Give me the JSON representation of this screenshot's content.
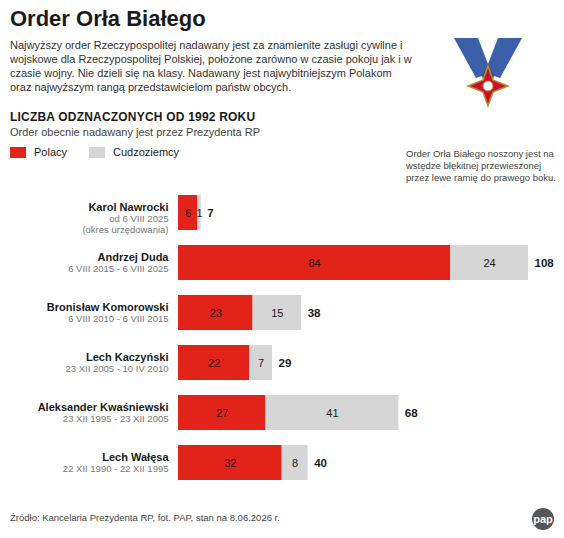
{
  "chart_data": {
    "type": "bar",
    "orientation": "horizontal",
    "stacked": true,
    "data_labels": true,
    "tick_labels": false,
    "legend": "top-left",
    "title": "Order Orła Białego",
    "description": "Najwyższy order Rzeczypospolitej nadawany jest za znamienite zasługi cywilne i wojskowe dla Rzeczypospolitej Polskiej, położone zarówno w czasie pokoju jak i w czasie wojny. Nie dzieli się na klasy. Nadawany jest najwybitniejszym Polakom oraz najwyższym rangą przedstawicielom państw obcych.",
    "subtitle": "LICZBA ODZNACZONYCH OD 1992 ROKU",
    "subtitle2": "Order obecnie nadawany jest przez Prezydenta RP",
    "note": "Order Orła Białego noszony jest na wstędze błękitnej przewieszonej przez lewe ramię do prawego boku.",
    "source": "Źródło: Kancelaria Prezydenta RP, fot. PAP, stan na 8.06.2026 r.",
    "logo_text": "pap",
    "categories": [
      "Karol Nawrocki",
      "Andrzej Duda",
      "Bronisław Komorowski",
      "Lech Kaczyński",
      "Aleksander Kwaśniewski",
      "Lech Wałęsa"
    ],
    "terms": [
      [
        "od 6 VIII 2025",
        "(okres urzędowania)"
      ],
      [
        "6 VIII 2015 - 6 VIII 2025"
      ],
      [
        "6 VIII 2010 - 6 VIII 2015"
      ],
      [
        "23 XII 2005 - 10 IV 2010"
      ],
      [
        "23 XII 1995 - 23 XII 2005"
      ],
      [
        "22 XII 1990 - 22 XII 1995"
      ]
    ],
    "series": [
      {
        "name": "Polacy",
        "color": "#e2231a",
        "values": [
          6,
          84,
          23,
          22,
          27,
          32
        ]
      },
      {
        "name": "Cudzoziemcy",
        "color": "#d6d6d6",
        "values": [
          1,
          24,
          15,
          7,
          41,
          8
        ]
      }
    ],
    "totals": [
      7,
      108,
      38,
      29,
      68,
      40
    ],
    "xlim": [
      0,
      108
    ],
    "xticks": []
  }
}
